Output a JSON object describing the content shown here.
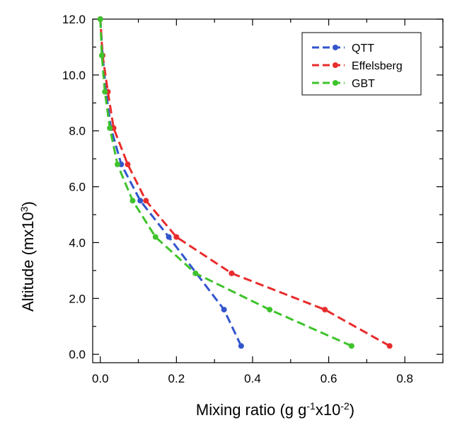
{
  "chart_data": {
    "type": "line",
    "xlabel": {
      "base": "Mixing ratio (g g",
      "sup1": "-1",
      "mid": "x10",
      "sup2": "-2",
      "end": ")"
    },
    "ylabel": {
      "base": "Altitude (mx10",
      "sup": "3",
      "end": ")"
    },
    "xlim": [
      -0.02,
      0.9
    ],
    "ylim": [
      -0.3,
      12.0
    ],
    "x_ticks": [
      0.0,
      0.2,
      0.4,
      0.6,
      0.8
    ],
    "x_tick_labels": [
      "0.0",
      "0.2",
      "0.4",
      "0.6",
      "0.8"
    ],
    "y_ticks": [
      0.0,
      2.0,
      4.0,
      6.0,
      8.0,
      10.0,
      12.0
    ],
    "y_tick_labels": [
      "0.0",
      "2.0",
      "4.0",
      "6.0",
      "8.0",
      "10.0",
      "12.0"
    ],
    "grid": false,
    "legend": "top-right",
    "series": [
      {
        "name": "QTT",
        "color": "#3355cc",
        "points": [
          [
            0.37,
            0.3
          ],
          [
            0.325,
            1.6
          ],
          [
            0.18,
            4.2
          ],
          [
            0.105,
            5.5
          ],
          [
            0.055,
            6.8
          ],
          [
            0.028,
            8.1
          ],
          [
            0.015,
            9.4
          ],
          [
            0.006,
            10.7
          ],
          [
            0.0,
            12.0
          ]
        ]
      },
      {
        "name": "Effelsberg",
        "color": "#e82c2c",
        "points": [
          [
            0.76,
            0.3
          ],
          [
            0.59,
            1.6
          ],
          [
            0.345,
            2.9
          ],
          [
            0.2,
            4.2
          ],
          [
            0.12,
            5.5
          ],
          [
            0.072,
            6.8
          ],
          [
            0.035,
            8.1
          ],
          [
            0.02,
            9.4
          ],
          [
            0.006,
            10.7
          ],
          [
            0.0,
            12.0
          ]
        ]
      },
      {
        "name": "GBT",
        "color": "#3fc32c",
        "points": [
          [
            0.66,
            0.3
          ],
          [
            0.445,
            1.6
          ],
          [
            0.25,
            2.9
          ],
          [
            0.145,
            4.2
          ],
          [
            0.085,
            5.5
          ],
          [
            0.045,
            6.8
          ],
          [
            0.025,
            8.1
          ],
          [
            0.012,
            9.4
          ],
          [
            0.004,
            10.7
          ],
          [
            0.0,
            12.0
          ]
        ]
      }
    ]
  }
}
